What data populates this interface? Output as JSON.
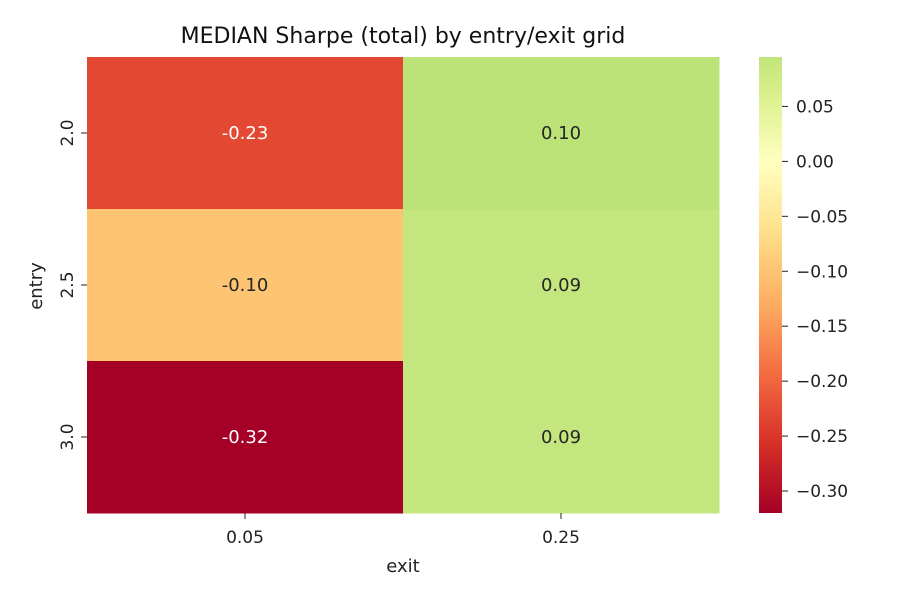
{
  "chart_data": {
    "type": "heatmap",
    "title": "MEDIAN Sharpe (total) by entry/exit grid",
    "xlabel": "exit",
    "ylabel": "entry",
    "x_categories": [
      "0.05",
      "0.25"
    ],
    "y_categories": [
      "2.0",
      "2.5",
      "3.0"
    ],
    "values": [
      [
        -0.23,
        0.1
      ],
      [
        -0.1,
        0.09
      ],
      [
        -0.32,
        0.09
      ]
    ],
    "cell_labels": [
      [
        "-0.23",
        "0.10"
      ],
      [
        "-0.10",
        "0.09"
      ],
      [
        "-0.32",
        "0.09"
      ]
    ],
    "colormap": "RdYlGn",
    "colorbar": {
      "vmin": -0.32,
      "vmax": 0.095,
      "ticks": [
        0.05,
        0.0,
        -0.05,
        -0.1,
        -0.15,
        -0.2,
        -0.25,
        -0.3
      ],
      "tick_labels": [
        "0.05",
        "0.00",
        "−0.05",
        "−0.10",
        "−0.15",
        "−0.20",
        "−0.25",
        "−0.30"
      ]
    }
  }
}
